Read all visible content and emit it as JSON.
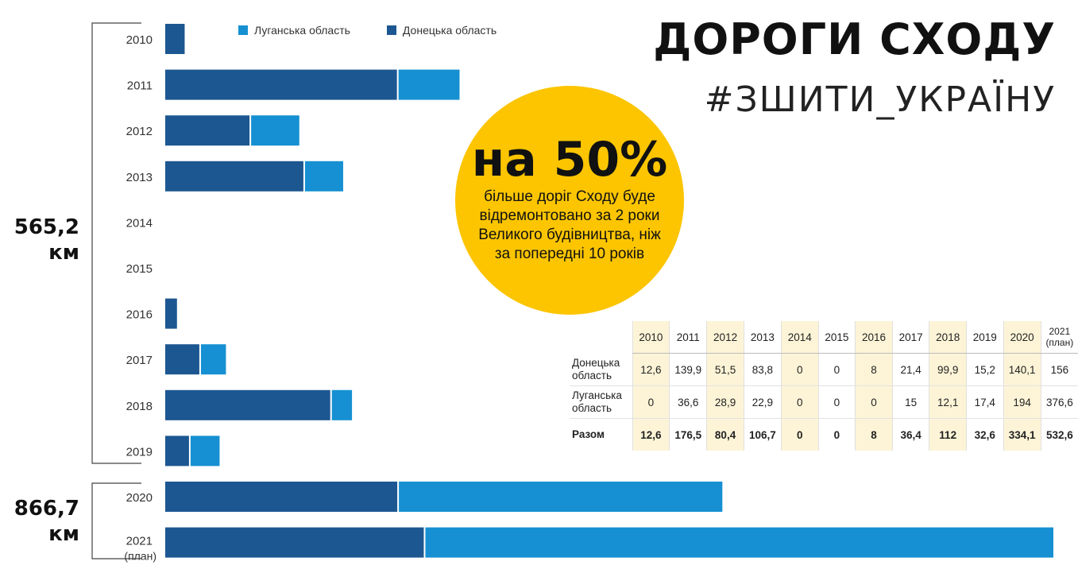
{
  "header": {
    "title": "ДОРОГИ СХОДУ",
    "hashtag": "#ЗШИТИ_УКРАЇНУ"
  },
  "colors": {
    "donetsk": "#1c5791",
    "luhansk": "#1690d2",
    "circle": "#fcc500",
    "highlight": "#fdf4d7"
  },
  "totals": {
    "first": {
      "value": "565,2",
      "unit": "км"
    },
    "second": {
      "value": "866,7",
      "unit": "км"
    }
  },
  "callout": {
    "big": "на 50%",
    "text": "більше доріг Сходу буде відремонтовано за 2 роки Великого будівництва, ніж за попередні 10 років"
  },
  "chart_data": {
    "type": "bar",
    "orientation": "horizontal",
    "stacked": true,
    "categories": [
      "2010",
      "2011",
      "2012",
      "2013",
      "2014",
      "2015",
      "2016",
      "2017",
      "2018",
      "2019",
      "2020",
      "2021"
    ],
    "category_sublabels": [
      "",
      "",
      "",
      "",
      "",
      "",
      "",
      "",
      "",
      "",
      "",
      "(план)"
    ],
    "series": [
      {
        "name": "Донецька область",
        "color": "#1c5791",
        "values": [
          12.6,
          139.9,
          51.5,
          83.8,
          0,
          0,
          8,
          21.4,
          99.9,
          15.2,
          140.1,
          156
        ]
      },
      {
        "name": "Луганська область",
        "color": "#1690d2",
        "values": [
          0,
          36.6,
          28.9,
          22.9,
          0,
          0,
          0,
          15,
          12.1,
          17.4,
          194,
          376.6
        ]
      }
    ],
    "legend": [
      "Луганська область",
      "Донецька область"
    ],
    "legend_position": "top",
    "xlim": [
      0,
      532.6
    ]
  },
  "table": {
    "headers": [
      "2010",
      "2011",
      "2012",
      "2013",
      "2014",
      "2015",
      "2016",
      "2017",
      "2018",
      "2019",
      "2020"
    ],
    "header_last": "2021",
    "header_last_sub": "(план)",
    "highlight_columns": [
      0,
      2,
      4,
      6,
      8,
      10
    ],
    "rows": [
      {
        "label": "Донецька область",
        "cells": [
          "12,6",
          "139,9",
          "51,5",
          "83,8",
          "0",
          "0",
          "8",
          "21,4",
          "99,9",
          "15,2",
          "140,1",
          "156"
        ]
      },
      {
        "label": "Луганська область",
        "cells": [
          "0",
          "36,6",
          "28,9",
          "22,9",
          "0",
          "0",
          "0",
          "15",
          "12,1",
          "17,4",
          "194",
          "376,6"
        ]
      },
      {
        "label": "Разом",
        "cells": [
          "12,6",
          "176,5",
          "80,4",
          "106,7",
          "0",
          "0",
          "8",
          "36,4",
          "112",
          "32,6",
          "334,1",
          "532,6"
        ]
      }
    ]
  }
}
